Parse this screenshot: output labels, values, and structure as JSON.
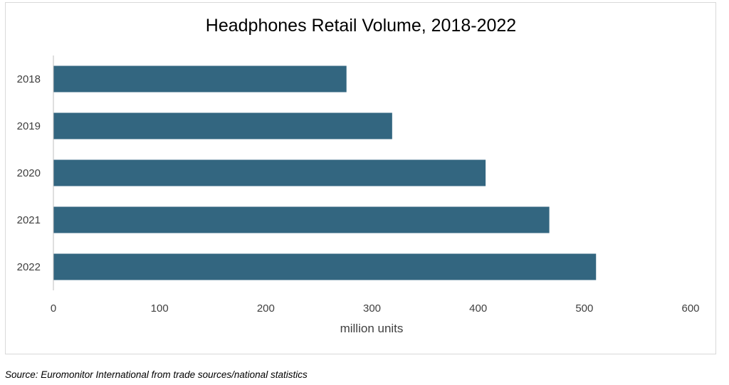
{
  "chart_data": {
    "type": "bar",
    "orientation": "horizontal",
    "title": "Headphones Retail Volume, 2018-2022",
    "xlabel": "million units",
    "ylabel": "",
    "categories": [
      "2018",
      "2019",
      "2020",
      "2021",
      "2022"
    ],
    "values": [
      276,
      319,
      407,
      467,
      511
    ],
    "xlim": [
      0,
      600
    ],
    "x_ticks": [
      "0",
      "100",
      "200",
      "300",
      "400",
      "500",
      "600"
    ],
    "grid": false,
    "legend": "none",
    "bar_color": "#336680"
  },
  "source": "Source: Euromonitor International from trade sources/national statistics"
}
